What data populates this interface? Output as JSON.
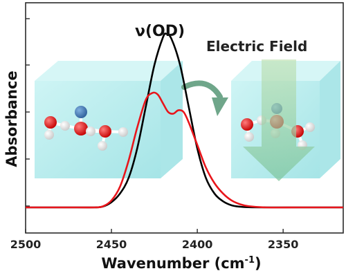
{
  "chart_data": {
    "type": "line",
    "xlabel": "Wavenumber (cm",
    "xlabel_sup": "-1",
    "xlabel_close": ")",
    "ylabel": "Absorbance",
    "x_reversed": true,
    "xlim": [
      2500,
      2315
    ],
    "ylim": [
      0,
      1.1
    ],
    "x_ticks": [
      2500,
      2450,
      2400,
      2350
    ],
    "x_tick_labels": [
      "2500",
      "2450",
      "2400",
      "2350"
    ],
    "grid": false,
    "annotations": {
      "peak_label": "ν(OD)",
      "field_label": "Electric Field"
    },
    "series": [
      {
        "color": "#000000",
        "x": [
          2500,
          2470,
          2460,
          2455,
          2450,
          2445,
          2440,
          2435,
          2430,
          2425,
          2420,
          2418,
          2415,
          2410,
          2405,
          2400,
          2395,
          2390,
          2385,
          2380,
          2375,
          2370,
          2360,
          2340,
          2315
        ],
        "y": [
          0.0,
          0.0,
          0.0,
          0.005,
          0.03,
          0.08,
          0.17,
          0.34,
          0.58,
          0.82,
          0.98,
          1.0,
          0.97,
          0.82,
          0.58,
          0.34,
          0.17,
          0.08,
          0.035,
          0.012,
          0.004,
          0.001,
          0.0,
          0.0,
          0.0
        ]
      },
      {
        "color": "#e8151b",
        "x": [
          2500,
          2470,
          2460,
          2455,
          2450,
          2445,
          2440,
          2435,
          2430,
          2426,
          2423,
          2420,
          2417,
          2414,
          2411,
          2408,
          2405,
          2400,
          2395,
          2390,
          2385,
          2380,
          2375,
          2370,
          2360,
          2340,
          2315
        ],
        "y": [
          0.0,
          0.0,
          0.0,
          0.006,
          0.04,
          0.12,
          0.27,
          0.46,
          0.62,
          0.66,
          0.65,
          0.6,
          0.55,
          0.54,
          0.56,
          0.55,
          0.49,
          0.36,
          0.23,
          0.14,
          0.08,
          0.04,
          0.018,
          0.007,
          0.0,
          0.0,
          0.0
        ]
      }
    ]
  }
}
